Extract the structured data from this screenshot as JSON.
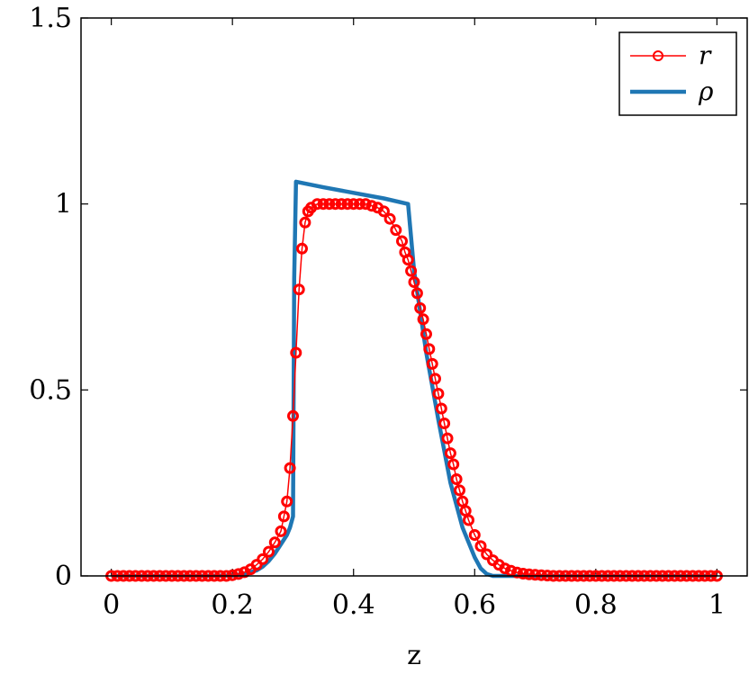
{
  "chart_data": {
    "type": "line",
    "xlabel": "z",
    "ylabel": "",
    "xlim": [
      -0.05,
      1.05
    ],
    "ylim": [
      0,
      1.5
    ],
    "xticks": [
      0,
      0.2,
      0.4,
      0.6,
      0.8,
      1
    ],
    "xtick_labels": [
      "0",
      "0.2",
      "0.4",
      "0.6",
      "0.8",
      "1"
    ],
    "yticks": [
      0,
      0.5,
      1,
      1.5
    ],
    "ytick_labels": [
      "0",
      "0.5",
      "1",
      "1.5"
    ],
    "legend_position": "top-right",
    "series": [
      {
        "name": "r",
        "color": "#ff0000",
        "style": "line-with-open-circle-markers",
        "x": [
          0.0,
          0.01,
          0.02,
          0.03,
          0.04,
          0.05,
          0.06,
          0.07,
          0.08,
          0.09,
          0.1,
          0.11,
          0.12,
          0.13,
          0.14,
          0.15,
          0.16,
          0.17,
          0.18,
          0.19,
          0.2,
          0.21,
          0.22,
          0.23,
          0.24,
          0.25,
          0.26,
          0.27,
          0.28,
          0.285,
          0.29,
          0.295,
          0.3,
          0.305,
          0.31,
          0.315,
          0.32,
          0.325,
          0.33,
          0.34,
          0.35,
          0.36,
          0.37,
          0.38,
          0.39,
          0.4,
          0.41,
          0.42,
          0.43,
          0.44,
          0.45,
          0.46,
          0.47,
          0.48,
          0.485,
          0.49,
          0.495,
          0.5,
          0.505,
          0.51,
          0.515,
          0.52,
          0.525,
          0.53,
          0.535,
          0.54,
          0.545,
          0.55,
          0.555,
          0.56,
          0.565,
          0.57,
          0.575,
          0.58,
          0.585,
          0.59,
          0.6,
          0.61,
          0.62,
          0.63,
          0.64,
          0.65,
          0.66,
          0.67,
          0.68,
          0.69,
          0.7,
          0.71,
          0.72,
          0.73,
          0.74,
          0.75,
          0.76,
          0.77,
          0.78,
          0.79,
          0.8,
          0.81,
          0.82,
          0.83,
          0.84,
          0.85,
          0.86,
          0.87,
          0.88,
          0.89,
          0.9,
          0.91,
          0.92,
          0.93,
          0.94,
          0.95,
          0.96,
          0.97,
          0.98,
          0.99,
          1.0
        ],
        "y": [
          0,
          0,
          0,
          0,
          0,
          0,
          0,
          0,
          0,
          0,
          0,
          0,
          0,
          0,
          0,
          0,
          0,
          0,
          0,
          0,
          0.002,
          0.005,
          0.01,
          0.018,
          0.03,
          0.045,
          0.065,
          0.09,
          0.12,
          0.16,
          0.2,
          0.29,
          0.43,
          0.6,
          0.77,
          0.88,
          0.95,
          0.98,
          0.99,
          1.0,
          1.0,
          1.0,
          1.0,
          1.0,
          1.0,
          1.0,
          1.0,
          1.0,
          0.995,
          0.99,
          0.98,
          0.96,
          0.93,
          0.9,
          0.87,
          0.85,
          0.82,
          0.79,
          0.76,
          0.72,
          0.69,
          0.65,
          0.61,
          0.57,
          0.53,
          0.49,
          0.45,
          0.41,
          0.37,
          0.33,
          0.3,
          0.26,
          0.23,
          0.2,
          0.175,
          0.15,
          0.11,
          0.08,
          0.058,
          0.042,
          0.03,
          0.02,
          0.014,
          0.009,
          0.006,
          0.004,
          0.003,
          0.002,
          0.001,
          0,
          0,
          0,
          0,
          0,
          0,
          0,
          0,
          0,
          0,
          0,
          0,
          0,
          0,
          0,
          0,
          0,
          0,
          0,
          0,
          0,
          0,
          0,
          0,
          0,
          0,
          0,
          0
        ]
      },
      {
        "name": "ρ",
        "color": "#1f77b4",
        "style": "thick-line",
        "x": [
          0.0,
          0.1,
          0.15,
          0.2,
          0.22,
          0.24,
          0.25,
          0.26,
          0.27,
          0.28,
          0.29,
          0.295,
          0.3,
          0.302,
          0.305,
          0.35,
          0.4,
          0.45,
          0.49,
          0.5,
          0.52,
          0.54,
          0.56,
          0.58,
          0.6,
          0.61,
          0.62,
          0.63,
          0.65,
          0.7,
          1.0
        ],
        "y": [
          0,
          0,
          0,
          0.001,
          0.005,
          0.015,
          0.025,
          0.04,
          0.06,
          0.085,
          0.11,
          0.13,
          0.16,
          0.8,
          1.06,
          1.045,
          1.03,
          1.015,
          1.0,
          0.82,
          0.6,
          0.42,
          0.25,
          0.13,
          0.05,
          0.02,
          0.005,
          0,
          0,
          0,
          0
        ]
      }
    ]
  }
}
